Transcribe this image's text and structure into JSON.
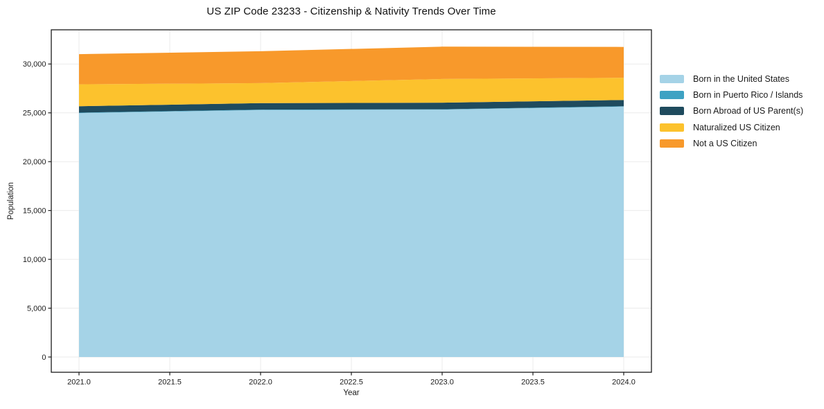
{
  "chart_data": {
    "type": "area",
    "stacked": true,
    "title": "US ZIP Code 23233 - Citizenship & Nativity Trends Over Time",
    "xlabel": "Year",
    "ylabel": "Population",
    "x": [
      2021,
      2022,
      2023,
      2024
    ],
    "xlim": [
      2021,
      2024
    ],
    "ylim": [
      0,
      30000
    ],
    "grid": true,
    "legend_position": "right-outside",
    "x_tick_values": [
      2021.0,
      2021.5,
      2022.0,
      2022.5,
      2023.0,
      2023.5,
      2024.0
    ],
    "x_tick_labels": [
      "2021.0",
      "2021.5",
      "2022.0",
      "2022.5",
      "2023.0",
      "2023.5",
      "2024.0"
    ],
    "y_tick_values": [
      0,
      5000,
      10000,
      15000,
      20000,
      25000,
      30000
    ],
    "y_tick_labels": [
      "0",
      "5,000",
      "10,000",
      "15,000",
      "20,000",
      "25,000",
      "30,000"
    ],
    "series": [
      {
        "name": "Born in the United States",
        "color": "#a5d3e7",
        "values": [
          24980,
          25290,
          25330,
          25640
        ]
      },
      {
        "name": "Born in Puerto Rico / Islands",
        "color": "#3ea2c3",
        "values": [
          40,
          40,
          40,
          40
        ]
      },
      {
        "name": "Born Abroad of US Parent(s)",
        "color": "#1f4b5e",
        "values": [
          660,
          660,
          670,
          640
        ]
      },
      {
        "name": "Naturalized US Citizen",
        "color": "#fcc22d",
        "values": [
          2240,
          2050,
          2430,
          2270
        ]
      },
      {
        "name": "Not a US Citizen",
        "color": "#f8992b",
        "values": [
          3090,
          3270,
          3310,
          3160
        ]
      }
    ],
    "colors": {
      "grid": "#ebebeb",
      "spine": "#1a1a1a",
      "tick_text": "#1a1a1a"
    }
  }
}
